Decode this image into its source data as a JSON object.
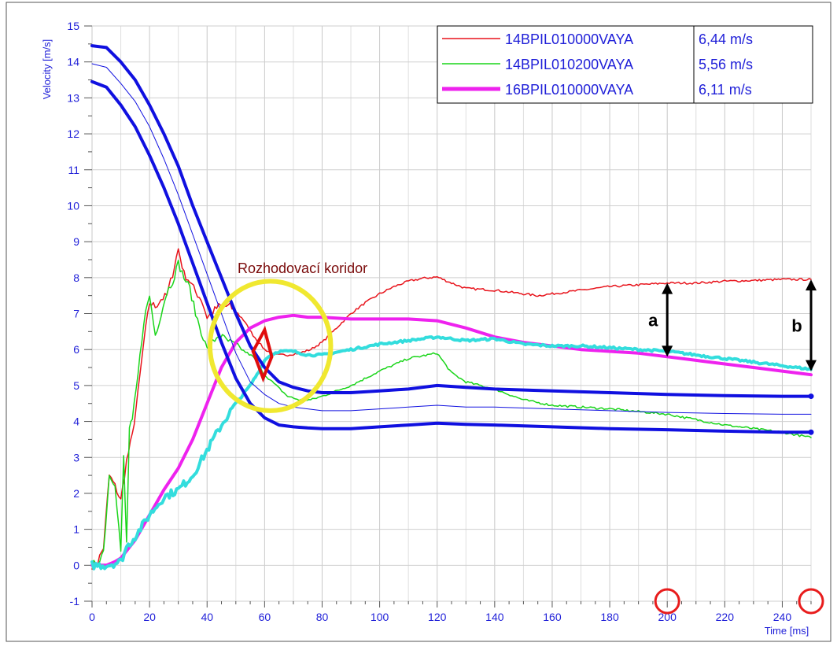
{
  "chart_data": {
    "type": "line",
    "title": "",
    "xlabel": "Time [ms]",
    "ylabel": "Velocity [m/s]",
    "xlim": [
      0,
      250
    ],
    "ylim": [
      -1,
      15
    ],
    "x_ticks": [
      0,
      20,
      40,
      60,
      80,
      100,
      120,
      140,
      160,
      180,
      200,
      220,
      240
    ],
    "y_ticks": [
      -1,
      0,
      1,
      2,
      3,
      4,
      5,
      6,
      7,
      8,
      9,
      10,
      11,
      12,
      13,
      14,
      15
    ],
    "grid": true,
    "legend_position": "top-right",
    "colors": {
      "red": "#e8141c",
      "green": "#1ad51a",
      "magenta": "#ee22ee",
      "cyan": "#33dddd",
      "blue": "#1010e0",
      "yellow": "#f0e830",
      "tick_text": "#1f1fd8",
      "annotation": "#7a0a0a"
    },
    "legend": [
      {
        "name": "14BPIL010000VAYA",
        "value": "6,44 m/s",
        "color": "#e8141c",
        "width": 1.5
      },
      {
        "name": "14BPIL010200VAYA",
        "value": "5,56 m/s",
        "color": "#1ad51a",
        "width": 1.5
      },
      {
        "name": "16BPIL010000VAYA",
        "value": "6,11 m/s",
        "color": "#ee22ee",
        "width": 5
      }
    ],
    "series": [
      {
        "name": "14BPIL010000VAYA",
        "color": "#e8141c",
        "width": 1.5,
        "noise": true,
        "x": [
          0,
          2,
          4,
          6,
          8,
          10,
          12,
          14,
          16,
          18,
          20,
          22,
          24,
          26,
          28,
          30,
          32,
          34,
          36,
          38,
          40,
          44,
          48,
          52,
          56,
          60,
          64,
          68,
          72,
          76,
          80,
          85,
          90,
          95,
          100,
          105,
          110,
          115,
          120,
          125,
          130,
          140,
          150,
          155,
          160,
          170,
          180,
          190,
          200,
          210,
          220,
          230,
          240,
          250
        ],
        "y": [
          0,
          0.1,
          0.5,
          2.5,
          2.2,
          1.8,
          2.9,
          3.6,
          4.8,
          6.2,
          7.3,
          7.2,
          7.4,
          7.5,
          8.1,
          8.8,
          8.1,
          7.9,
          7.6,
          7.4,
          6.9,
          7.2,
          7.2,
          6.9,
          6.4,
          6.0,
          5.85,
          5.85,
          5.9,
          6.0,
          6.2,
          6.6,
          7.0,
          7.3,
          7.55,
          7.75,
          7.9,
          7.98,
          8.02,
          7.85,
          7.7,
          7.65,
          7.55,
          7.5,
          7.55,
          7.65,
          7.75,
          7.8,
          7.85,
          7.85,
          7.9,
          7.92,
          7.95,
          7.95
        ]
      },
      {
        "name": "14BPIL010200VAYA",
        "color": "#1ad51a",
        "width": 1.5,
        "noise": true,
        "x": [
          0,
          2,
          4,
          6,
          8,
          10,
          11,
          12,
          13,
          14,
          16,
          18,
          20,
          22,
          24,
          26,
          28,
          30,
          32,
          34,
          36,
          38,
          40,
          44,
          48,
          52,
          56,
          60,
          64,
          68,
          72,
          76,
          80,
          90,
          100,
          110,
          120,
          125,
          130,
          140,
          150,
          160,
          180,
          200,
          210,
          220,
          230,
          240,
          250
        ],
        "y": [
          0,
          0.1,
          0.4,
          2.5,
          2.3,
          0.4,
          3.0,
          0.6,
          3.8,
          4.0,
          5.3,
          6.8,
          7.5,
          6.4,
          7.0,
          7.6,
          7.9,
          8.4,
          8.0,
          7.7,
          7.0,
          6.5,
          6.0,
          6.4,
          6.2,
          6.0,
          5.8,
          5.3,
          5.0,
          4.7,
          4.6,
          4.6,
          4.7,
          5.0,
          5.4,
          5.75,
          5.9,
          5.35,
          5.1,
          4.9,
          4.6,
          4.45,
          4.35,
          4.2,
          4.05,
          3.9,
          3.8,
          3.7,
          3.55
        ]
      },
      {
        "name": "16BPIL010000VAYA",
        "color": "#ee22ee",
        "width": 4,
        "noise": false,
        "x": [
          0,
          5,
          8,
          10,
          15,
          20,
          25,
          30,
          35,
          40,
          45,
          50,
          55,
          60,
          65,
          70,
          75,
          80,
          90,
          100,
          110,
          120,
          130,
          140,
          150,
          160,
          170,
          180,
          190,
          200,
          210,
          220,
          230,
          240,
          250
        ],
        "y": [
          0,
          0,
          0.1,
          0.2,
          0.7,
          1.4,
          2.1,
          2.7,
          3.5,
          4.5,
          5.5,
          6.2,
          6.6,
          6.8,
          6.9,
          6.95,
          6.9,
          6.9,
          6.85,
          6.85,
          6.85,
          6.8,
          6.6,
          6.35,
          6.2,
          6.1,
          6.0,
          5.95,
          5.9,
          5.8,
          5.7,
          5.6,
          5.5,
          5.4,
          5.3
        ]
      },
      {
        "name": "",
        "color": "#33dddd",
        "width": 4,
        "noise": true,
        "x": [
          0,
          5,
          10,
          12,
          15,
          20,
          25,
          30,
          35,
          40,
          45,
          50,
          55,
          58,
          60,
          62,
          65,
          70,
          75,
          80,
          90,
          100,
          110,
          120,
          130,
          140,
          150,
          160,
          170,
          180,
          190,
          200,
          210,
          220,
          230,
          240,
          250
        ],
        "y": [
          0,
          0,
          0.1,
          0.5,
          0.8,
          1.4,
          1.9,
          2.1,
          2.5,
          3.2,
          3.9,
          4.5,
          5.0,
          5.4,
          5.7,
          5.85,
          5.95,
          5.95,
          5.85,
          5.85,
          6.0,
          6.15,
          6.25,
          6.35,
          6.25,
          6.3,
          6.15,
          6.1,
          6.1,
          6.05,
          6.0,
          5.95,
          5.85,
          5.75,
          5.65,
          5.55,
          5.45
        ]
      },
      {
        "name": "",
        "color": "#1010e0",
        "width": 4,
        "noise": false,
        "x": [
          0,
          5,
          10,
          15,
          20,
          25,
          30,
          35,
          40,
          45,
          50,
          55,
          60,
          65,
          70,
          75,
          80,
          90,
          100,
          110,
          120,
          130,
          140,
          160,
          180,
          200,
          220,
          240,
          250
        ],
        "y": [
          14.45,
          14.4,
          14.0,
          13.5,
          12.8,
          12.0,
          11.1,
          10.0,
          9.0,
          8.0,
          7.0,
          6.1,
          5.5,
          5.1,
          4.95,
          4.85,
          4.8,
          4.8,
          4.85,
          4.9,
          5.0,
          4.95,
          4.9,
          4.85,
          4.8,
          4.75,
          4.72,
          4.7,
          4.7
        ]
      },
      {
        "name": "",
        "color": "#1010e0",
        "width": 1,
        "noise": false,
        "x": [
          0,
          5,
          10,
          15,
          20,
          25,
          30,
          35,
          40,
          45,
          50,
          55,
          60,
          65,
          70,
          75,
          80,
          90,
          100,
          110,
          120,
          130,
          140,
          160,
          180,
          200,
          220,
          240,
          250
        ],
        "y": [
          13.95,
          13.85,
          13.4,
          12.9,
          12.2,
          11.3,
          10.3,
          9.2,
          8.1,
          7.0,
          5.9,
          5.1,
          4.75,
          4.5,
          4.4,
          4.35,
          4.3,
          4.3,
          4.35,
          4.4,
          4.45,
          4.4,
          4.4,
          4.35,
          4.3,
          4.25,
          4.22,
          4.2,
          4.2
        ]
      },
      {
        "name": "",
        "color": "#1010e0",
        "width": 4,
        "noise": false,
        "x": [
          0,
          5,
          10,
          15,
          20,
          25,
          30,
          35,
          40,
          45,
          50,
          55,
          60,
          65,
          70,
          75,
          80,
          90,
          100,
          110,
          120,
          130,
          140,
          160,
          180,
          200,
          220,
          240,
          250
        ],
        "y": [
          13.45,
          13.3,
          12.8,
          12.2,
          11.4,
          10.5,
          9.5,
          8.4,
          7.3,
          6.2,
          5.2,
          4.5,
          4.1,
          3.9,
          3.85,
          3.82,
          3.8,
          3.8,
          3.85,
          3.9,
          3.95,
          3.92,
          3.9,
          3.85,
          3.8,
          3.77,
          3.73,
          3.7,
          3.7
        ]
      }
    ],
    "annotations": {
      "corridor_label": "Rozhodovací koridor",
      "label_a": "a",
      "label_b": "b",
      "arrow_a": {
        "x": 200,
        "y1": 5.8,
        "y2": 7.85
      },
      "arrow_b": {
        "x": 250,
        "y1": 5.4,
        "y2": 7.95
      },
      "circle_markers_x": [
        200,
        250
      ],
      "corridor_ellipse": {
        "cx": 62,
        "cy": 6.1,
        "rx": 21,
        "ry": 1.8
      },
      "red_diamond": [
        [
          60,
          6.55
        ],
        [
          62.5,
          5.8
        ],
        [
          59.5,
          5.2
        ],
        [
          56,
          5.95
        ]
      ]
    }
  }
}
